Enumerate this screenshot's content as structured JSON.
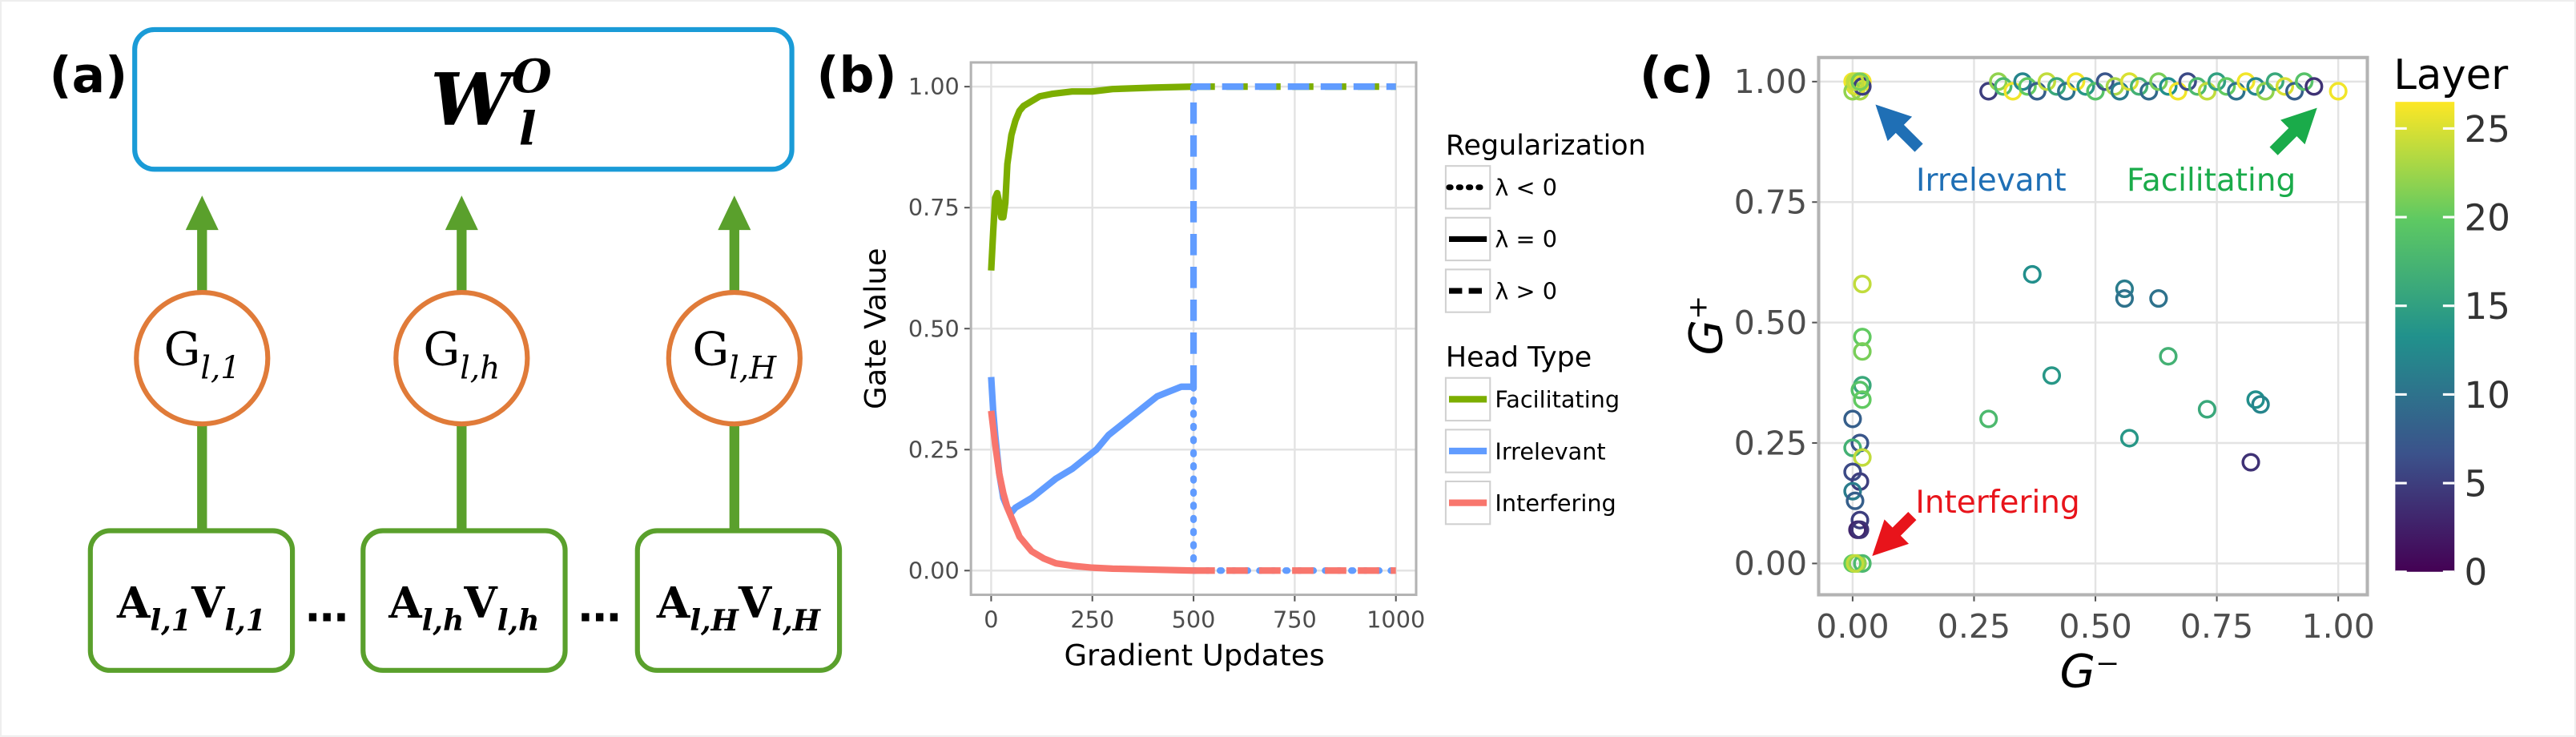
{
  "diagram": {
    "panel_label": "(a)",
    "output_node": {
      "label": [
        "W",
        "l"
      ],
      "superscript": "O"
    },
    "gate_nodes": [
      {
        "label": [
          "G",
          "l,1"
        ]
      },
      {
        "label": [
          "G",
          "l,h"
        ]
      },
      {
        "label": [
          "G",
          "l,H"
        ]
      }
    ],
    "head_nodes": [
      {
        "label": [
          "A",
          "l,1",
          "V",
          "l,1"
        ]
      },
      {
        "label": [
          "A",
          "l,h",
          "V",
          "l,h"
        ]
      },
      {
        "label": [
          "A",
          "l,H",
          "V",
          "l,H"
        ]
      }
    ],
    "ellipses": [
      "…",
      "…"
    ]
  },
  "chart_data": [
    {
      "type": "line",
      "panel_label": "(b)",
      "x_label": "Gradient Updates",
      "y_label": "Gate Value",
      "xlim": [
        -50,
        1050
      ],
      "ylim": [
        -0.05,
        1.05
      ],
      "xticks": [
        0,
        250,
        500,
        750,
        1000
      ],
      "yticks": [
        {
          "value": 0,
          "label": "0.00"
        },
        {
          "value": 0.25,
          "label": "0.25"
        },
        {
          "value": 0.5,
          "label": "0.50"
        },
        {
          "value": 0.75,
          "label": "0.75"
        },
        {
          "value": 1,
          "label": "1.00"
        }
      ],
      "grid": true,
      "legend": {
        "regularization": {
          "title": "Regularization",
          "entries": [
            {
              "label": "λ < 0",
              "linestyle": "dotted"
            },
            {
              "label": "λ = 0",
              "linestyle": "solid"
            },
            {
              "label": "λ > 0",
              "linestyle": "dashed"
            }
          ]
        },
        "head_type_title": "Head Type"
      },
      "series": [
        {
          "name": "Facilitating",
          "color": "#7cae00",
          "segments": [
            {
              "linestyle": "solid",
              "x": [
                0,
                5,
                10,
                15,
                20,
                25,
                30,
                35,
                40,
                50,
                60,
                70,
                80,
                100,
                120,
                150,
                200,
                250,
                300,
                400,
                500
              ],
              "values": [
                0.62,
                0.7,
                0.77,
                0.78,
                0.76,
                0.73,
                0.73,
                0.76,
                0.84,
                0.9,
                0.93,
                0.95,
                0.96,
                0.97,
                0.98,
                0.985,
                0.99,
                0.99,
                0.995,
                0.998,
                1.0
              ]
            },
            {
              "linestyle": "dashed",
              "x": [
                500,
                1000
              ],
              "values": [
                1,
                1
              ]
            }
          ]
        },
        {
          "name": "Irrelevant",
          "color": "#619cff",
          "segments": [
            {
              "linestyle": "solid",
              "x": [
                0,
                5,
                10,
                20,
                30,
                40,
                50,
                60,
                80,
                100,
                130,
                160,
                200,
                230,
                260,
                290,
                320,
                350,
                380,
                410,
                440,
                470,
                490,
                500
              ],
              "values": [
                0.4,
                0.33,
                0.28,
                0.2,
                0.15,
                0.13,
                0.12,
                0.13,
                0.14,
                0.15,
                0.17,
                0.19,
                0.21,
                0.23,
                0.25,
                0.28,
                0.3,
                0.32,
                0.34,
                0.36,
                0.37,
                0.38,
                0.38,
                0.38
              ]
            },
            {
              "linestyle": "dotted",
              "x": [
                500,
                500,
                1000
              ],
              "values": [
                0.38,
                0,
                0
              ]
            },
            {
              "linestyle": "dashed",
              "x": [
                500,
                500,
                1000
              ],
              "values": [
                0.38,
                1,
                1
              ]
            }
          ]
        },
        {
          "name": "Interfering",
          "color": "#f8766d",
          "segments": [
            {
              "linestyle": "solid",
              "x": [
                0,
                10,
                20,
                30,
                40,
                50,
                70,
                100,
                130,
                160,
                200,
                250,
                300,
                400,
                500
              ],
              "values": [
                0.33,
                0.26,
                0.2,
                0.16,
                0.13,
                0.11,
                0.07,
                0.04,
                0.025,
                0.015,
                0.01,
                0.006,
                0.004,
                0.002,
                0.0
              ]
            },
            {
              "linestyle": "dashed",
              "x": [
                500,
                1000
              ],
              "values": [
                0,
                0
              ]
            }
          ]
        }
      ]
    },
    {
      "type": "scatter",
      "panel_label": "(c)",
      "x_label": "G⁻",
      "y_label": "G⁺",
      "xlim": [
        -0.07,
        1.06
      ],
      "ylim": [
        -0.065,
        1.05
      ],
      "xticks": [
        {
          "value": 0,
          "label": "0.00"
        },
        {
          "value": 0.25,
          "label": "0.25"
        },
        {
          "value": 0.5,
          "label": "0.50"
        },
        {
          "value": 0.75,
          "label": "0.75"
        },
        {
          "value": 1,
          "label": "1.00"
        }
      ],
      "yticks": [
        {
          "value": 0,
          "label": "0.00"
        },
        {
          "value": 0.25,
          "label": "0.25"
        },
        {
          "value": 0.5,
          "label": "0.50"
        },
        {
          "value": 0.75,
          "label": "0.75"
        },
        {
          "value": 1,
          "label": "1.00"
        }
      ],
      "grid": true,
      "colorbar": {
        "title": "Layer",
        "lim": [
          0,
          26.5
        ],
        "ticks": [
          0,
          5,
          10,
          15,
          20,
          25
        ]
      },
      "annotations": [
        {
          "text": "Irrelevant",
          "color": "#1f6fb5"
        },
        {
          "text": "Facilitating",
          "color": "#1aab4a"
        },
        {
          "text": "Interfering",
          "color": "#e8141b"
        }
      ],
      "series": [
        {
          "x": [
            0,
            0.005,
            0.01,
            0.015,
            0.02,
            0,
            0.01,
            0.02,
            0.005,
            0.015,
            0.28,
            0.3,
            0.31,
            0.33,
            0.35,
            0.36,
            0.38,
            0.4,
            0.42,
            0.44,
            0.46,
            0.48,
            0.5,
            0.52,
            0.54,
            0.55,
            0.57,
            0.59,
            0.61,
            0.63,
            0.65,
            0.67,
            0.69,
            0.71,
            0.73,
            0.75,
            0.77,
            0.79,
            0.81,
            0.83,
            0.85,
            0.87,
            0.89,
            0.91,
            0.93,
            0.95,
            1.0,
            0.02,
            0.02,
            0.02,
            0.02,
            0.015,
            0.02,
            0,
            0.015,
            0,
            0.02,
            0,
            0.015,
            0,
            0.005,
            0.015,
            0.01,
            0.015,
            0,
            0.01,
            0.02,
            0.005,
            0.28,
            0.37,
            0.41,
            0.56,
            0.56,
            0.57,
            0.63,
            0.65,
            0.73,
            0.83,
            0.84,
            0.82
          ],
          "values": [
            1,
            0.99,
            1,
            0.98,
            1,
            0.98,
            0.99,
            0.99,
            1,
            1,
            0.98,
            1,
            0.99,
            0.98,
            1,
            0.99,
            0.98,
            1,
            0.99,
            0.98,
            1,
            0.99,
            0.98,
            1,
            0.99,
            0.98,
            1,
            0.99,
            0.98,
            1,
            0.99,
            0.98,
            1,
            0.99,
            0.98,
            1,
            0.99,
            0.98,
            1,
            0.99,
            0.98,
            1,
            0.99,
            0.98,
            1,
            0.99,
            0.98,
            0.58,
            0.47,
            0.44,
            0.37,
            0.36,
            0.34,
            0.3,
            0.25,
            0.24,
            0.22,
            0.19,
            0.17,
            0.15,
            0.13,
            0.09,
            0.07,
            0.07,
            0,
            0,
            0,
            0,
            0.3,
            0.6,
            0.39,
            0.57,
            0.55,
            0.26,
            0.55,
            0.43,
            0.32,
            0.34,
            0.33,
            0.21
          ],
          "layer": [
            26,
            25,
            24,
            23,
            26,
            22,
            25,
            5,
            24,
            21,
            5,
            22,
            18,
            26,
            12,
            20,
            8,
            24,
            16,
            10,
            26,
            14,
            19,
            7,
            23,
            11,
            25,
            17,
            9,
            21,
            13,
            26,
            6,
            18,
            24,
            15,
            20,
            10,
            26,
            12,
            22,
            16,
            25,
            8,
            19,
            4,
            26,
            24,
            20,
            21,
            16,
            19,
            20,
            8,
            7,
            17,
            24,
            6,
            5,
            11,
            8,
            5,
            3,
            4,
            20,
            22,
            18,
            24,
            18,
            13,
            14,
            11,
            10,
            14,
            10,
            17,
            16,
            13,
            12,
            4
          ]
        }
      ]
    }
  ]
}
